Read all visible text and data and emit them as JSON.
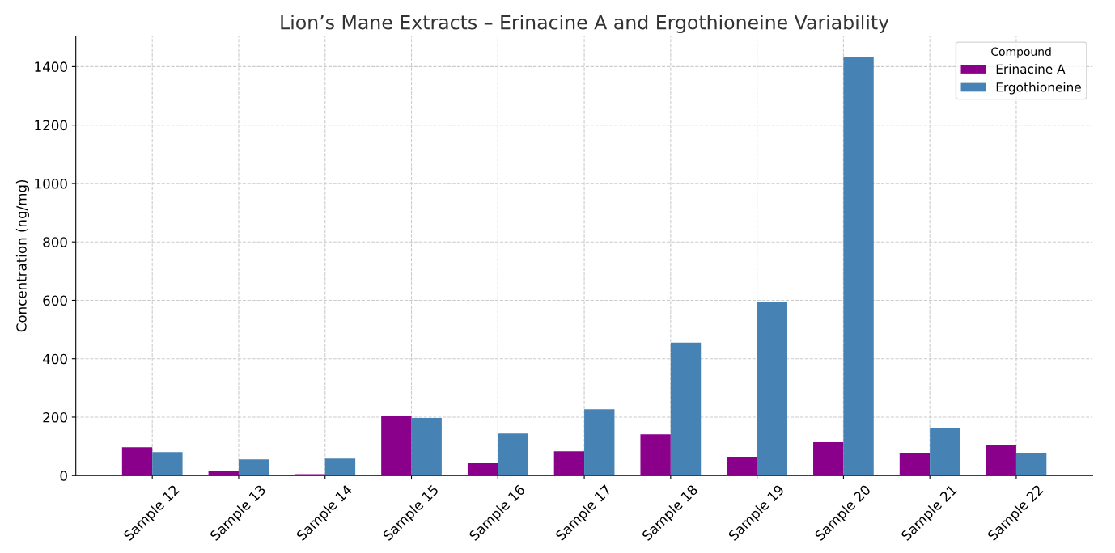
{
  "chart_data": {
    "type": "bar",
    "title": "Lion’s Mane Extracts – Erinacine A and Ergothioneine Variability",
    "ylabel": "Concentration (ng/mg)",
    "legend_title": "Compound",
    "categories": [
      "Sample 12",
      "Sample 13",
      "Sample 14",
      "Sample 15",
      "Sample 16",
      "Sample 17",
      "Sample 18",
      "Sample 19",
      "Sample 20",
      "Sample 21",
      "Sample 22"
    ],
    "series": [
      {
        "name": "Erinacine A",
        "color": "#8b008b",
        "values": [
          97,
          17,
          5,
          205,
          42,
          83,
          141,
          64,
          114,
          78,
          105
        ]
      },
      {
        "name": "Ergothioneine",
        "color": "#4682b4",
        "values": [
          80,
          55,
          58,
          197,
          144,
          227,
          455,
          593,
          1434,
          164,
          78
        ]
      }
    ],
    "ylim": [
      0,
      1505
    ],
    "yticks": [
      0,
      200,
      400,
      600,
      800,
      1000,
      1200,
      1400
    ],
    "grid": true,
    "legend": "top right"
  }
}
